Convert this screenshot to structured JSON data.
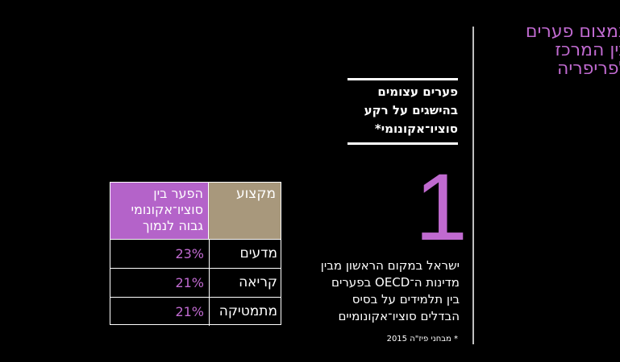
{
  "title": "צמצום פערים\nבין המרכז\nלפריפריה",
  "subheading": "פערים עצומים\nבהישגים על רקע\nסוציו־אקונומי*",
  "big_number": "1",
  "description": "ישראל במקום הראשון מבין\nמדינות ה־OECD בפערים\nבין תלמידים על בסיס\nהבדלים סוציו־אקונומיים",
  "footnote": "* מבחני פיז\"ה 2015",
  "table": {
    "header_subject": "מקצוע",
    "header_gap": "הפער בין\nסוציו־אקונומי\nגבוה לנמוך",
    "rows": [
      {
        "subject": "מדעים",
        "gap": "23%"
      },
      {
        "subject": "קריאה",
        "gap": "21%"
      },
      {
        "subject": "מתמטיקה",
        "gap": "21%"
      }
    ]
  },
  "colors": {
    "accent": "#c06ad0",
    "header_subject_bg": "#a8987c",
    "header_gap_bg": "#b463c9",
    "background": "#000000"
  }
}
